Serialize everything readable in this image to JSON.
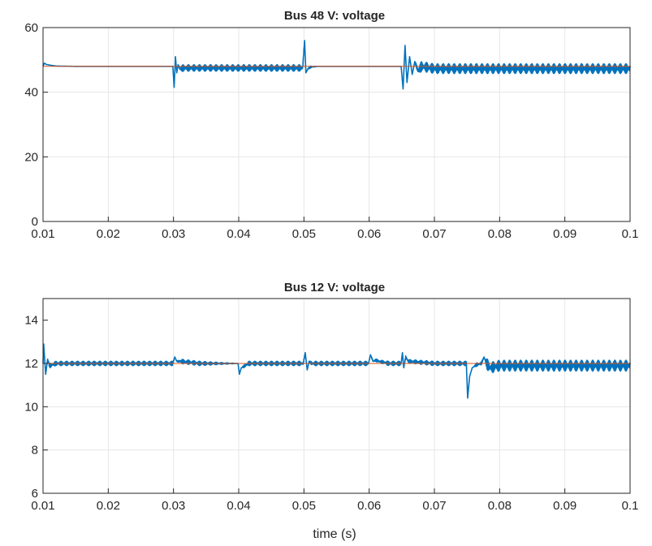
{
  "chart_data": [
    {
      "type": "line",
      "title": "Bus 48 V: voltage",
      "xlabel": "",
      "ylabel": "",
      "xlim": [
        0.01,
        0.1
      ],
      "ylim": [
        0,
        60
      ],
      "x_ticks": [
        "0.01",
        "0.02",
        "0.03",
        "0.04",
        "0.05",
        "0.06",
        "0.07",
        "0.08",
        "0.09",
        "0.1"
      ],
      "y_ticks": [
        "0",
        "20",
        "40",
        "60"
      ],
      "grid": true,
      "series": [
        {
          "color": "#0072BD",
          "x": [
            0.01,
            0.0102,
            0.0105,
            0.011,
            0.012,
            0.015,
            0.02,
            0.025,
            0.0299,
            0.0301,
            0.0303,
            0.0305,
            0.0307,
            0.031,
            0.0315,
            0.035,
            0.04,
            0.045,
            0.0498,
            0.0501,
            0.0503,
            0.0506,
            0.051,
            0.052,
            0.055,
            0.06,
            0.0649,
            0.0652,
            0.0655,
            0.0658,
            0.0662,
            0.0666,
            0.067,
            0.0675,
            0.068,
            0.07,
            0.08,
            0.09,
            0.1
          ],
          "y": [
            48.0,
            49.0,
            48.6,
            48.4,
            48.1,
            48.0,
            48.0,
            48.0,
            48.0,
            41.5,
            51.0,
            46.0,
            48.5,
            47.2,
            47.5,
            47.5,
            47.5,
            47.5,
            47.5,
            56.0,
            46.0,
            47.2,
            47.8,
            48.0,
            48.0,
            48.0,
            48.0,
            41.0,
            54.5,
            43.0,
            51.0,
            45.5,
            49.5,
            46.5,
            48.0,
            47.3,
            47.3,
            47.3,
            47.3
          ],
          "ripple": [
            0,
            0,
            0,
            0,
            0,
            0,
            0,
            0,
            0,
            0,
            0,
            0,
            0,
            1.0,
            1.0,
            1.0,
            1.0,
            1.0,
            1.0,
            0,
            0,
            0.3,
            0.3,
            0,
            0,
            0,
            0,
            0,
            0,
            0,
            0,
            0,
            0,
            1.5,
            1.5,
            1.5,
            1.5,
            1.5,
            1.5
          ]
        },
        {
          "color": "#D95319",
          "x": [
            0.01,
            0.1
          ],
          "y": [
            48,
            48
          ],
          "ripple": [
            0,
            0
          ]
        }
      ]
    },
    {
      "type": "line",
      "title": "Bus 12 V: voltage",
      "xlabel": "time (s)",
      "ylabel": "",
      "xlim": [
        0.01,
        0.1
      ],
      "ylim": [
        6,
        15
      ],
      "x_ticks": [
        "0.01",
        "0.02",
        "0.03",
        "0.04",
        "0.05",
        "0.06",
        "0.07",
        "0.08",
        "0.09",
        "0.1"
      ],
      "y_ticks": [
        "6",
        "8",
        "10",
        "12",
        "14"
      ],
      "grid": true,
      "series": [
        {
          "color": "#0072BD",
          "x": [
            0.01,
            0.0101,
            0.0104,
            0.0107,
            0.011,
            0.012,
            0.015,
            0.02,
            0.0299,
            0.0302,
            0.0305,
            0.031,
            0.034,
            0.0399,
            0.0401,
            0.0404,
            0.041,
            0.0415,
            0.0425,
            0.045,
            0.0499,
            0.0502,
            0.0505,
            0.0508,
            0.0512,
            0.052,
            0.055,
            0.0599,
            0.0602,
            0.0606,
            0.061,
            0.0615,
            0.063,
            0.0649,
            0.0651,
            0.0653,
            0.0656,
            0.066,
            0.07,
            0.0749,
            0.0751,
            0.0754,
            0.0758,
            0.0765,
            0.0772,
            0.0776,
            0.078,
            0.0785,
            0.08,
            0.09,
            0.1
          ],
          "y": [
            12.0,
            12.9,
            11.5,
            12.2,
            11.9,
            12.0,
            12.0,
            12.0,
            12.0,
            12.3,
            12.1,
            12.1,
            12.0,
            12.0,
            11.5,
            11.8,
            11.9,
            12.0,
            12.0,
            12.0,
            12.0,
            12.5,
            11.7,
            12.1,
            12.0,
            12.0,
            12.0,
            12.0,
            12.4,
            12.1,
            12.15,
            12.1,
            12.0,
            12.0,
            12.5,
            11.8,
            12.3,
            12.1,
            12.0,
            12.0,
            10.4,
            11.4,
            11.8,
            11.95,
            12.0,
            12.3,
            12.0,
            11.8,
            11.9,
            11.9,
            11.9
          ],
          "ripple": [
            0,
            0,
            0,
            0,
            0.1,
            0.1,
            0.1,
            0.1,
            0.1,
            0,
            0,
            0.1,
            0.1,
            0,
            0,
            0,
            0.08,
            0.1,
            0.1,
            0.1,
            0.1,
            0,
            0,
            0,
            0.1,
            0.1,
            0.1,
            0.1,
            0,
            0.06,
            0.06,
            0.06,
            0.1,
            0.1,
            0,
            0,
            0.08,
            0.08,
            0.1,
            0.1,
            0,
            0,
            0,
            0.08,
            0.08,
            0,
            0.25,
            0.25,
            0.25,
            0.25,
            0.25
          ]
        },
        {
          "color": "#D95319",
          "x": [
            0.01,
            0.1
          ],
          "y": [
            12,
            12
          ],
          "ripple": [
            0,
            0
          ]
        }
      ]
    }
  ]
}
